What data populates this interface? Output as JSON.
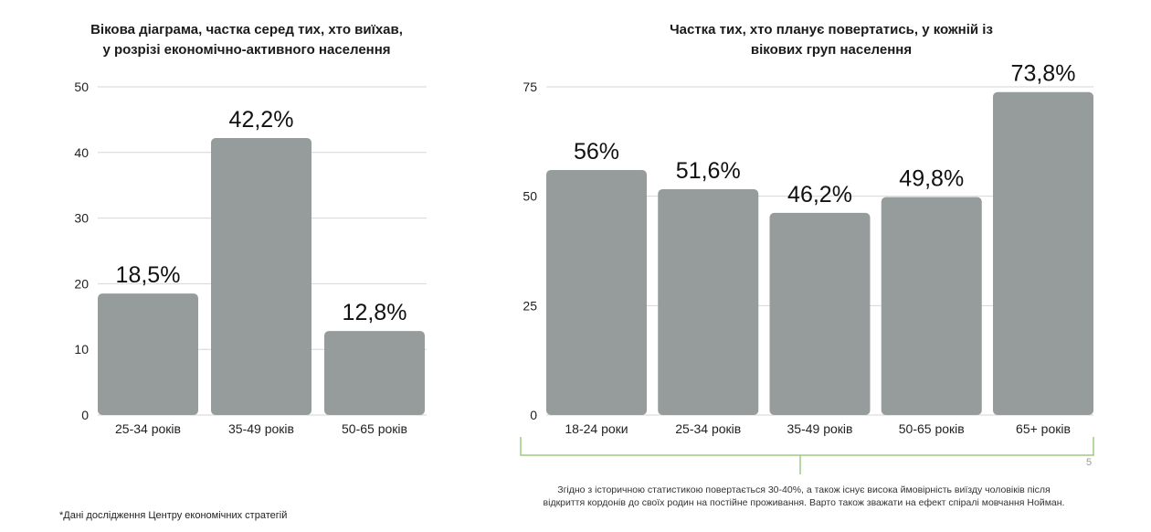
{
  "chart_data": [
    {
      "type": "bar",
      "title": "Вікова діаграма, частка серед тих, хто виїхав, у розрізі економічно-активного населення",
      "title_lines": [
        "Вікова діаграма, частка серед тих, хто виїхав,",
        "у розрізі економічно-активного населення"
      ],
      "categories": [
        "25-34 років",
        "35-49 років",
        "50-65 років"
      ],
      "values": [
        18.5,
        42.2,
        12.8
      ],
      "data_labels": [
        "18,5%",
        "42,2%",
        "12,8%"
      ],
      "yticks": [
        0,
        10,
        20,
        30,
        40,
        50
      ],
      "ylim": [
        0,
        50
      ],
      "grid": true,
      "bar_color": "#959c9b"
    },
    {
      "type": "bar",
      "title": "Частка тих, хто планує повертатись, у кожній із вікових груп населення",
      "title_lines": [
        "Частка тих, хто планує повертатись, у кожній із",
        "вікових груп населення"
      ],
      "categories": [
        "18-24 роки",
        "25-34 років",
        "35-49 років",
        "50-65 років",
        "65+ років"
      ],
      "values": [
        56,
        51.6,
        46.2,
        49.8,
        73.8
      ],
      "data_labels": [
        "56%",
        "51,6%",
        "46,2%",
        "49,8%",
        "73,8%"
      ],
      "yticks": [
        0,
        25,
        50,
        75
      ],
      "ylim": [
        0,
        75
      ],
      "grid": true,
      "bar_color": "#959c9b"
    }
  ],
  "footnote": "*Дані дослідження Центру економічних стратегій",
  "page_number": "5",
  "note_lines": [
    "Згідно з історичною статистикою повертається 30-40%, а також існує висока ймовірність виїзду чоловіків після",
    "відкриття кордонів до своїх родин на постійне проживання. Варто також зважати на ефект спіралі мовчання Нойман."
  ],
  "colors": {
    "bracket": "#9ccc84",
    "grid": "#d6d6d6"
  }
}
